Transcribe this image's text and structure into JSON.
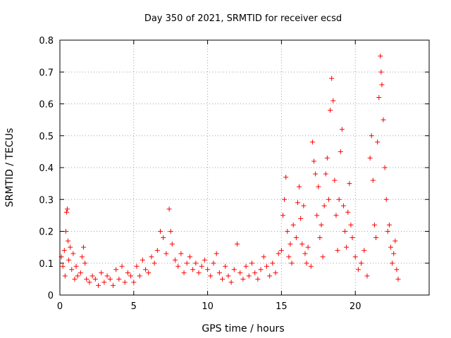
{
  "chart_data": {
    "type": "scatter",
    "title": "Day 350 of 2021, SRMTID for receiver ecsd",
    "xlabel": "GPS time / hours",
    "ylabel": "SRMTID / TECUs",
    "xlim": [
      0,
      25
    ],
    "ylim": [
      0,
      0.8
    ],
    "xticks": [
      0,
      5,
      10,
      15,
      20
    ],
    "xtick_labels": [
      "0",
      "5",
      "10",
      "15",
      "20"
    ],
    "yticks": [
      0,
      0.1,
      0.2,
      0.3,
      0.4,
      0.5,
      0.6,
      0.7,
      0.8
    ],
    "ytick_labels": [
      "0",
      "0.1",
      "0.2",
      "0.3",
      "0.4",
      "0.5",
      "0.6",
      "0.7",
      "0.8"
    ],
    "grid": true,
    "marker": "plus",
    "color": "#ff0000",
    "series": [
      {
        "name": "SRMTID",
        "points": [
          [
            0.1,
            0.12
          ],
          [
            0.2,
            0.09
          ],
          [
            0.3,
            0.14
          ],
          [
            0.35,
            0.06
          ],
          [
            0.4,
            0.2
          ],
          [
            0.45,
            0.26
          ],
          [
            0.5,
            0.27
          ],
          [
            0.55,
            0.17
          ],
          [
            0.6,
            0.11
          ],
          [
            0.7,
            0.15
          ],
          [
            0.8,
            0.08
          ],
          [
            0.9,
            0.13
          ],
          [
            1.0,
            0.05
          ],
          [
            1.1,
            0.09
          ],
          [
            1.2,
            0.06
          ],
          [
            1.4,
            0.07
          ],
          [
            1.5,
            0.12
          ],
          [
            1.6,
            0.15
          ],
          [
            1.7,
            0.1
          ],
          [
            1.8,
            0.05
          ],
          [
            2.0,
            0.04
          ],
          [
            2.2,
            0.06
          ],
          [
            2.4,
            0.05
          ],
          [
            2.6,
            0.03
          ],
          [
            2.8,
            0.07
          ],
          [
            3.0,
            0.04
          ],
          [
            3.2,
            0.06
          ],
          [
            3.4,
            0.05
          ],
          [
            3.6,
            0.03
          ],
          [
            3.8,
            0.08
          ],
          [
            4.0,
            0.05
          ],
          [
            4.2,
            0.09
          ],
          [
            4.4,
            0.04
          ],
          [
            4.6,
            0.07
          ],
          [
            4.8,
            0.06
          ],
          [
            5.0,
            0.04
          ],
          [
            5.2,
            0.09
          ],
          [
            5.4,
            0.06
          ],
          [
            5.6,
            0.11
          ],
          [
            5.8,
            0.08
          ],
          [
            6.0,
            0.07
          ],
          [
            6.2,
            0.12
          ],
          [
            6.4,
            0.1
          ],
          [
            6.6,
            0.14
          ],
          [
            6.8,
            0.2
          ],
          [
            7.0,
            0.18
          ],
          [
            7.2,
            0.13
          ],
          [
            7.4,
            0.27
          ],
          [
            7.5,
            0.2
          ],
          [
            7.6,
            0.16
          ],
          [
            7.8,
            0.11
          ],
          [
            8.0,
            0.09
          ],
          [
            8.2,
            0.13
          ],
          [
            8.4,
            0.07
          ],
          [
            8.6,
            0.1
          ],
          [
            8.8,
            0.12
          ],
          [
            9.0,
            0.08
          ],
          [
            9.2,
            0.1
          ],
          [
            9.4,
            0.07
          ],
          [
            9.6,
            0.09
          ],
          [
            9.8,
            0.11
          ],
          [
            10.0,
            0.08
          ],
          [
            10.2,
            0.06
          ],
          [
            10.4,
            0.1
          ],
          [
            10.6,
            0.13
          ],
          [
            10.8,
            0.07
          ],
          [
            11.0,
            0.05
          ],
          [
            11.2,
            0.09
          ],
          [
            11.4,
            0.06
          ],
          [
            11.6,
            0.04
          ],
          [
            11.8,
            0.08
          ],
          [
            12.0,
            0.16
          ],
          [
            12.2,
            0.07
          ],
          [
            12.4,
            0.05
          ],
          [
            12.6,
            0.09
          ],
          [
            12.8,
            0.06
          ],
          [
            13.0,
            0.1
          ],
          [
            13.2,
            0.07
          ],
          [
            13.4,
            0.05
          ],
          [
            13.6,
            0.08
          ],
          [
            13.8,
            0.12
          ],
          [
            14.0,
            0.09
          ],
          [
            14.2,
            0.06
          ],
          [
            14.4,
            0.1
          ],
          [
            14.6,
            0.07
          ],
          [
            14.8,
            0.13
          ],
          [
            15.0,
            0.14
          ],
          [
            15.1,
            0.25
          ],
          [
            15.2,
            0.3
          ],
          [
            15.3,
            0.37
          ],
          [
            15.4,
            0.2
          ],
          [
            15.5,
            0.12
          ],
          [
            15.6,
            0.16
          ],
          [
            15.7,
            0.1
          ],
          [
            15.8,
            0.22
          ],
          [
            16.0,
            0.18
          ],
          [
            16.1,
            0.29
          ],
          [
            16.2,
            0.34
          ],
          [
            16.3,
            0.24
          ],
          [
            16.4,
            0.16
          ],
          [
            16.5,
            0.28
          ],
          [
            16.6,
            0.13
          ],
          [
            16.7,
            0.1
          ],
          [
            16.8,
            0.15
          ],
          [
            17.0,
            0.09
          ],
          [
            17.1,
            0.48
          ],
          [
            17.2,
            0.42
          ],
          [
            17.3,
            0.38
          ],
          [
            17.4,
            0.25
          ],
          [
            17.5,
            0.34
          ],
          [
            17.6,
            0.18
          ],
          [
            17.7,
            0.22
          ],
          [
            17.8,
            0.12
          ],
          [
            17.9,
            0.28
          ],
          [
            18.0,
            0.38
          ],
          [
            18.1,
            0.43
          ],
          [
            18.2,
            0.3
          ],
          [
            18.3,
            0.58
          ],
          [
            18.4,
            0.68
          ],
          [
            18.5,
            0.61
          ],
          [
            18.6,
            0.36
          ],
          [
            18.7,
            0.25
          ],
          [
            18.8,
            0.14
          ],
          [
            18.9,
            0.3
          ],
          [
            19.0,
            0.45
          ],
          [
            19.1,
            0.52
          ],
          [
            19.2,
            0.28
          ],
          [
            19.3,
            0.2
          ],
          [
            19.4,
            0.15
          ],
          [
            19.5,
            0.26
          ],
          [
            19.6,
            0.35
          ],
          [
            19.7,
            0.22
          ],
          [
            19.8,
            0.18
          ],
          [
            20.0,
            0.12
          ],
          [
            20.2,
            0.08
          ],
          [
            20.4,
            0.1
          ],
          [
            20.6,
            0.14
          ],
          [
            20.8,
            0.06
          ],
          [
            21.0,
            0.43
          ],
          [
            21.1,
            0.5
          ],
          [
            21.2,
            0.36
          ],
          [
            21.3,
            0.22
          ],
          [
            21.4,
            0.18
          ],
          [
            21.5,
            0.48
          ],
          [
            21.6,
            0.62
          ],
          [
            21.7,
            0.75
          ],
          [
            21.75,
            0.7
          ],
          [
            21.8,
            0.66
          ],
          [
            21.9,
            0.55
          ],
          [
            22.0,
            0.4
          ],
          [
            22.1,
            0.3
          ],
          [
            22.2,
            0.2
          ],
          [
            22.3,
            0.22
          ],
          [
            22.4,
            0.15
          ],
          [
            22.5,
            0.1
          ],
          [
            22.6,
            0.13
          ],
          [
            22.7,
            0.17
          ],
          [
            22.8,
            0.08
          ],
          [
            22.9,
            0.05
          ]
        ]
      }
    ]
  }
}
